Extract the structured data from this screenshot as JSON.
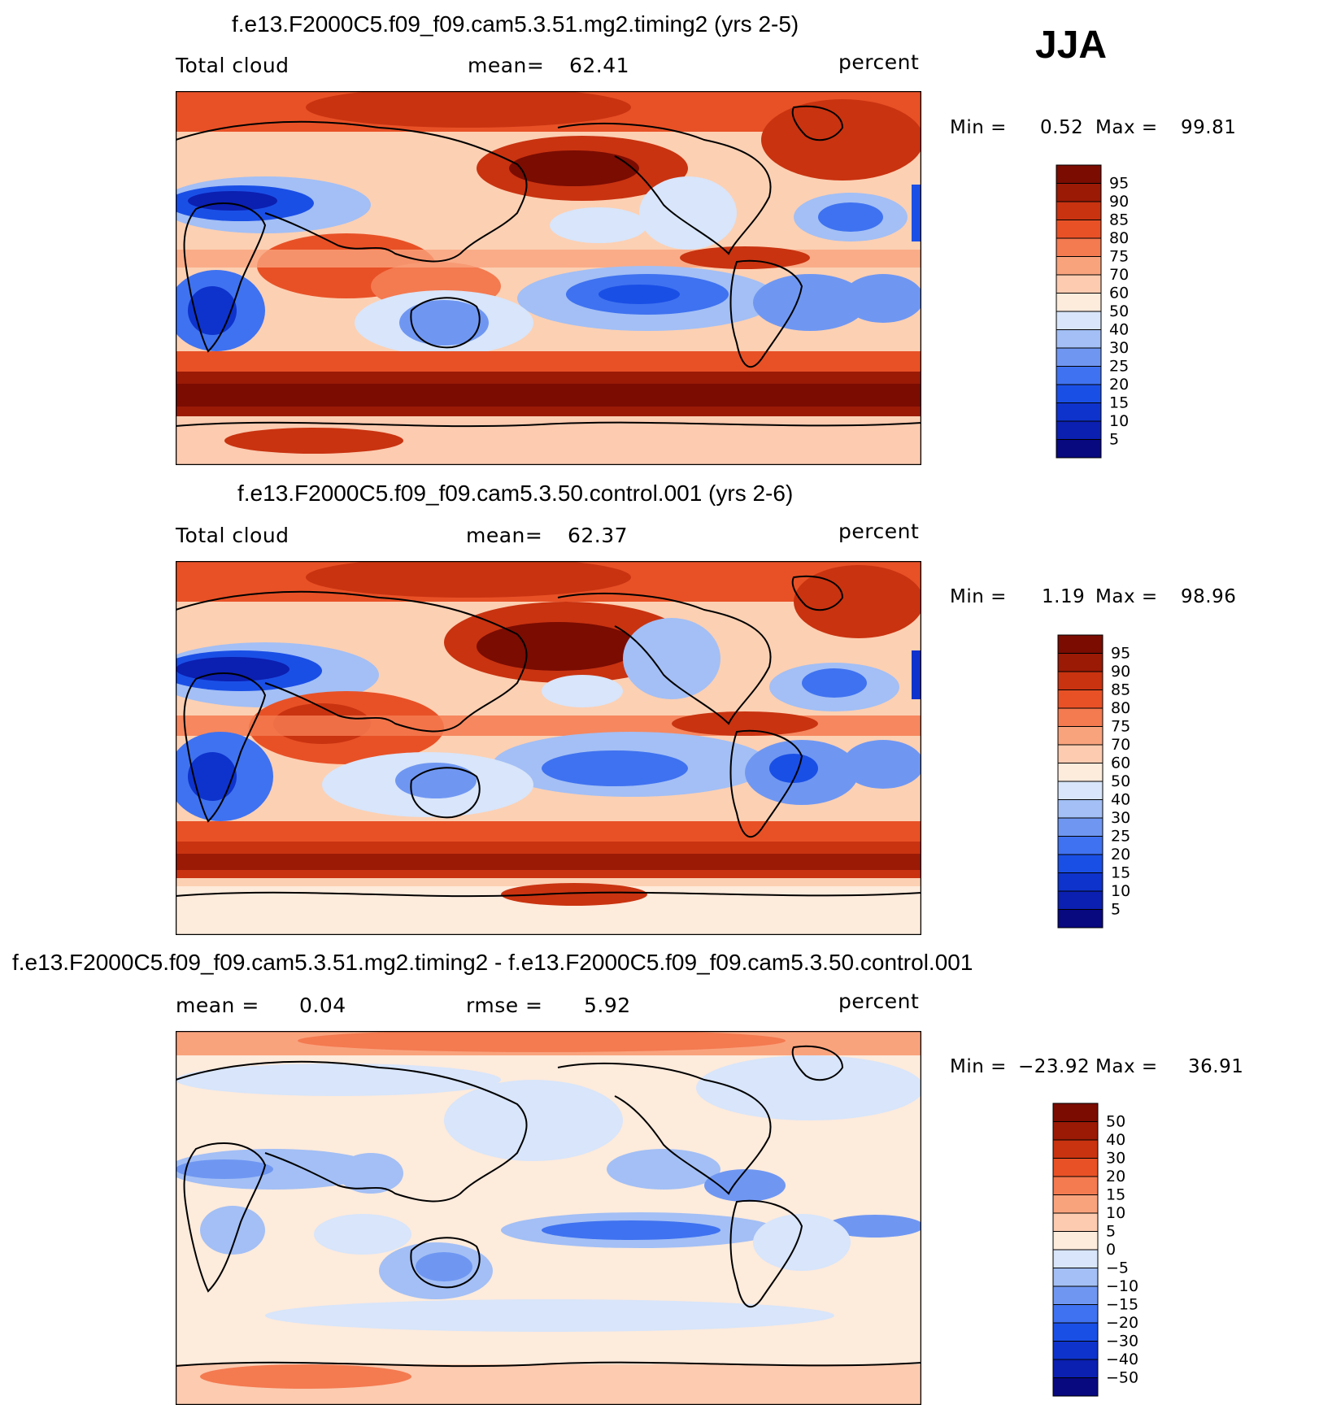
{
  "season": "JJA",
  "panels": [
    {
      "title": "f.e13.F2000C5.f09_f09.cam5.3.51.mg2.timing2 (yrs 2-5)",
      "variable": "Total cloud",
      "stat1_label": "mean=",
      "stat1_value": "62.41",
      "stat2_label": "",
      "stat2_value": "",
      "units": "percent",
      "min_label": "Min =",
      "min_value": "0.52",
      "max_label": "Max =",
      "max_value": "99.81",
      "type": "absolute"
    },
    {
      "title": "f.e13.F2000C5.f09_f09.cam5.3.50.control.001 (yrs 2-6)",
      "variable": "Total cloud",
      "stat1_label": "mean=",
      "stat1_value": "62.37",
      "stat2_label": "",
      "stat2_value": "",
      "units": "percent",
      "min_label": "Min =",
      "min_value": "1.19",
      "max_label": "Max =",
      "max_value": "98.96",
      "type": "absolute"
    },
    {
      "title": "f.e13.F2000C5.f09_f09.cam5.3.51.mg2.timing2 - f.e13.F2000C5.f09_f09.cam5.3.50.control.001",
      "variable": "",
      "stat1_label": "mean =",
      "stat1_value": "0.04",
      "stat2_label": "rmse =",
      "stat2_value": "5.92",
      "units": "percent",
      "min_label": "Min =",
      "min_value": "−23.92",
      "max_label": "Max =",
      "max_value": "36.91",
      "type": "difference"
    }
  ],
  "colorbars": {
    "absolute": {
      "colors": [
        "#08087f",
        "#0b1fb0",
        "#0e33cc",
        "#1a4fe6",
        "#3f72f0",
        "#6f97f2",
        "#a3bff5",
        "#d8e5fa",
        "#fdebdc",
        "#fccbb0",
        "#f9a37d",
        "#f47a50",
        "#e85126",
        "#c93310",
        "#9a1a06",
        "#7a0c02"
      ],
      "labels": [
        "95",
        "90",
        "85",
        "80",
        "75",
        "70",
        "60",
        "50",
        "40",
        "30",
        "25",
        "20",
        "15",
        "10",
        "5"
      ]
    },
    "difference": {
      "colors": [
        "#08087f",
        "#0b1fb0",
        "#0e33cc",
        "#1a4fe6",
        "#3f72f0",
        "#6f97f2",
        "#a3bff5",
        "#d8e5fa",
        "#fdebdc",
        "#fccbb0",
        "#f9a37d",
        "#f47a50",
        "#e85126",
        "#c93310",
        "#9a1a06",
        "#7a0c02"
      ],
      "labels": [
        "50",
        "40",
        "30",
        "20",
        "15",
        "10",
        "5",
        "0",
        "−5",
        "−10",
        "−15",
        "−20",
        "−30",
        "−40",
        "−50"
      ]
    }
  }
}
